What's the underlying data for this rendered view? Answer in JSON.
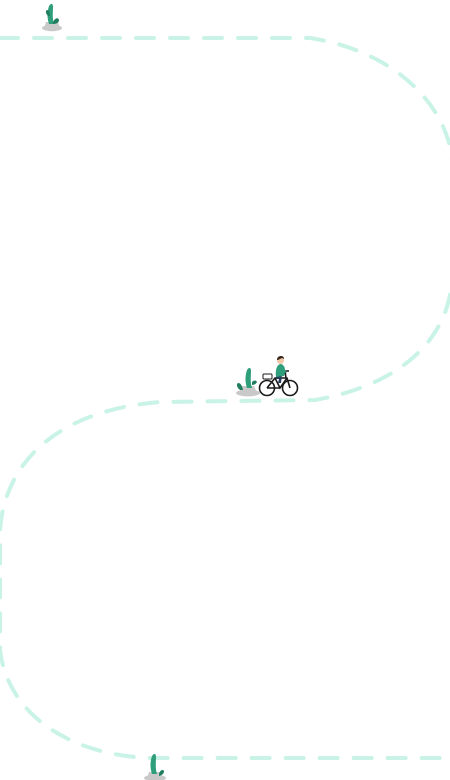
{
  "colors": {
    "background": "#ffffff",
    "path": "#c9f3e6",
    "plant": "#2f9e7b",
    "plant_dark": "#1f7d60",
    "pot": "#c9c9c9",
    "rider_shirt": "#2f9e7b",
    "rider_pants": "#263b5a",
    "bike": "#1a1a1a"
  },
  "icons": {
    "top_milestone": "plant-milestone-icon",
    "mid_milestone": "plant-milestone-icon",
    "bottom_milestone": "plant-milestone-icon",
    "rider": "bike-rider-icon"
  }
}
